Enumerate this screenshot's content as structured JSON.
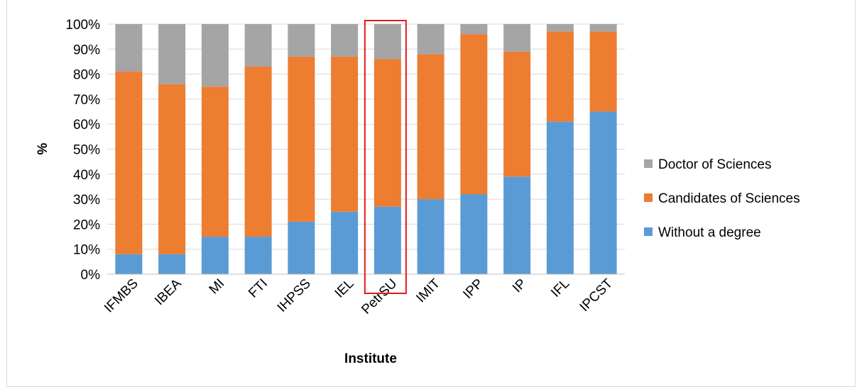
{
  "chart_data": {
    "type": "bar",
    "stacked": true,
    "percent_stacked": true,
    "categories": [
      "IFMBS",
      "IBEA",
      "MI",
      "FTI",
      "IHPSS",
      "IEL",
      "PetrSU",
      "IMIT",
      "IPP",
      "IP",
      "IFL",
      "IPCST"
    ],
    "series": [
      {
        "name": "Without a degree",
        "color": "#5b9bd5",
        "values": [
          8,
          8,
          15,
          15,
          21,
          25,
          27,
          30,
          32,
          39,
          61,
          65
        ]
      },
      {
        "name": "Candidates of Sciences",
        "color": "#ed7d31",
        "values": [
          73,
          68,
          60,
          68,
          66,
          62,
          59,
          58,
          64,
          50,
          36,
          32
        ]
      },
      {
        "name": "Doctor of Sciences",
        "color": "#a5a5a5",
        "values": [
          19,
          24,
          25,
          17,
          13,
          13,
          14,
          12,
          4,
          11,
          3,
          3
        ]
      }
    ],
    "xlabel": "Institute",
    "ylabel": "%",
    "ylim": [
      0,
      100
    ],
    "yticks": [
      "0%",
      "10%",
      "20%",
      "30%",
      "40%",
      "50%",
      "60%",
      "70%",
      "80%",
      "90%",
      "100%"
    ],
    "grid": true,
    "legend_position": "right",
    "legend_order": [
      "Doctor of Sciences",
      "Candidates of Sciences",
      "Without a degree"
    ],
    "highlight": {
      "category": "PetrSU",
      "color": "#e31a1c"
    }
  }
}
